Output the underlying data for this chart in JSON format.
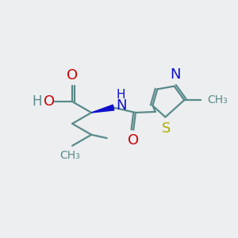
{
  "background_color": "#eceef0",
  "bond_color": "#5a8a8a",
  "bond_width": 1.6,
  "figsize": [
    3.0,
    3.0
  ],
  "dpi": 100,
  "xlim": [
    0.0,
    5.5
  ],
  "ylim": [
    0.3,
    3.2
  ],
  "colors": {
    "bond": "#5a8a8a",
    "oxygen": "#cc0000",
    "nitrogen": "#1010cc",
    "sulfur": "#b0b000",
    "wedge": "#1010cc"
  }
}
